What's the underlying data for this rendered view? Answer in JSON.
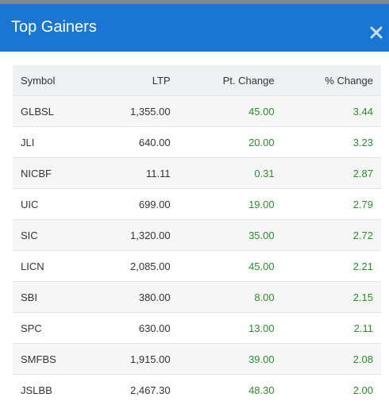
{
  "header": {
    "title": "Top Gainers"
  },
  "table": {
    "columns": [
      "Symbol",
      "LTP",
      "Pt. Change",
      "% Change"
    ],
    "rows": [
      [
        "GLBSL",
        "1,355.00",
        "45.00",
        "3.44"
      ],
      [
        "JLI",
        "640.00",
        "20.00",
        "3.23"
      ],
      [
        "NICBF",
        "11.11",
        "0.31",
        "2.87"
      ],
      [
        "UIC",
        "699.00",
        "19.00",
        "2.79"
      ],
      [
        "SIC",
        "1,320.00",
        "35.00",
        "2.72"
      ],
      [
        "LICN",
        "2,085.00",
        "45.00",
        "2.21"
      ],
      [
        "SBI",
        "380.00",
        "8.00",
        "2.15"
      ],
      [
        "SPC",
        "630.00",
        "13.00",
        "2.11"
      ],
      [
        "SMFBS",
        "1,915.00",
        "39.00",
        "2.08"
      ],
      [
        "JSLBB",
        "2,467.30",
        "48.30",
        "2.00"
      ]
    ]
  }
}
